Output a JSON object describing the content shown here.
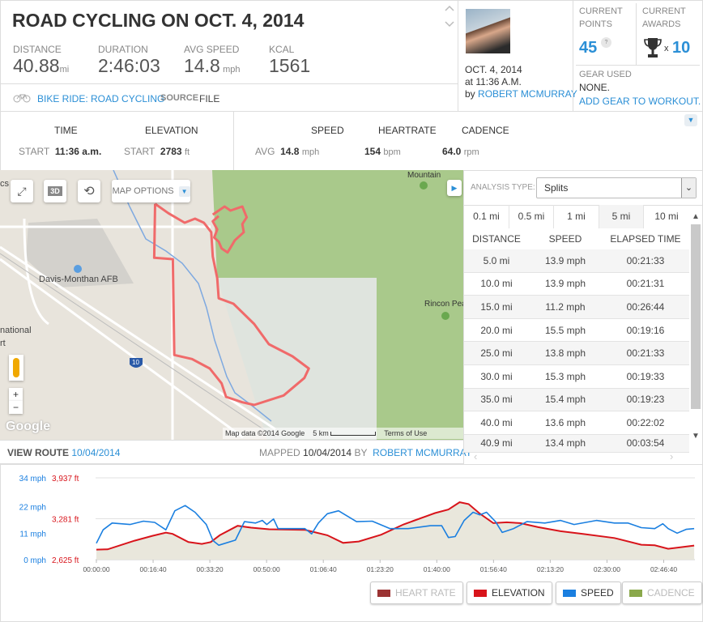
{
  "header": {
    "title": "ROAD CYCLING ON OCT. 4, 2014",
    "stats": [
      {
        "label": "DISTANCE",
        "value": "40.88",
        "unit": "mi"
      },
      {
        "label": "DURATION",
        "value": "2:46:03",
        "unit": ""
      },
      {
        "label": "AVG SPEED",
        "value": "14.8",
        "unit": "mph"
      },
      {
        "label": "KCAL",
        "value": "1561",
        "unit": ""
      }
    ],
    "activity_link": "BIKE RIDE: ROAD CYCLING",
    "source_label": "SOURCE",
    "source_value": "FILE"
  },
  "author": {
    "date": "OCT. 4, 2014",
    "time": "at 11:36 A.M.",
    "by": "by",
    "name": "ROBERT MCMURRAY"
  },
  "points": {
    "label1": "CURRENT",
    "label2": "POINTS",
    "value": "45",
    "help": "?"
  },
  "awards": {
    "label1": "CURRENT",
    "label2": "AWARDS",
    "x": "x",
    "value": "10"
  },
  "gear": {
    "label": "GEAR USED",
    "value": "NONE.",
    "add_link": "ADD GEAR TO WORKOUT."
  },
  "summary": {
    "time_h": "TIME",
    "elev_h": "ELEVATION",
    "start": "START",
    "time_v": "11:36 a.m.",
    "elev_v": "2783",
    "elev_u": "ft",
    "speed_h": "SPEED",
    "hr_h": "HEARTRATE",
    "cad_h": "CADENCE",
    "avg": "AVG",
    "speed_v": "14.8",
    "speed_u": "mph",
    "hr_v": "154",
    "hr_u": "bpm",
    "cad_v": "64.0",
    "cad_u": "rpm"
  },
  "map": {
    "options": "MAP OPTIONS",
    "btn3d": "3D",
    "labels": {
      "afb": "Davis-Monthan AFB",
      "intl1": "national",
      "intl2": "rt",
      "mountain": "Mountain",
      "rincon": "Rincon Pea",
      "cs": "cs",
      "i10": "10",
      "google": "Google"
    },
    "attribution": "Map data ©2014 Google",
    "scale": "5 km",
    "terms": "Terms of Use",
    "zoom_in": "+",
    "zoom_out": "−"
  },
  "route": {
    "view_label": "VIEW ROUTE",
    "view_date": "10/04/2014",
    "mapped_label": "MAPPED",
    "mapped_date": "10/04/2014",
    "by": "BY",
    "mapped_by": "ROBERT MCMURRAY"
  },
  "analysis": {
    "label": "ANALYSIS TYPE:",
    "selected": "Splits",
    "tabs": [
      "0.1 mi",
      "0.5 mi",
      "1 mi",
      "5 mi",
      "10 mi"
    ],
    "active_tab": "5 mi",
    "columns": [
      "DISTANCE",
      "SPEED",
      "ELAPSED TIME"
    ],
    "rows": [
      [
        "5.0 mi",
        "13.9 mph",
        "00:21:33"
      ],
      [
        "10.0 mi",
        "13.9 mph",
        "00:21:31"
      ],
      [
        "15.0 mi",
        "11.2 mph",
        "00:26:44"
      ],
      [
        "20.0 mi",
        "15.5 mph",
        "00:19:16"
      ],
      [
        "25.0 mi",
        "13.8 mph",
        "00:21:33"
      ],
      [
        "30.0 mi",
        "15.3 mph",
        "00:19:33"
      ],
      [
        "35.0 mi",
        "15.4 mph",
        "00:19:23"
      ],
      [
        "40.0 mi",
        "13.6 mph",
        "00:22:02"
      ],
      [
        "40.9 mi",
        "13.4 mph",
        "00:03:54"
      ]
    ]
  },
  "chart_data": {
    "type": "line",
    "x_ticks": [
      "00:00:00",
      "00:16:40",
      "00:33:20",
      "00:50:00",
      "01:06:40",
      "01:23:20",
      "01:40:00",
      "01:56:40",
      "02:13:20",
      "02:30:00",
      "02:46:40"
    ],
    "y_left_ticks": [
      "0 mph",
      "11 mph",
      "22 mph",
      "34 mph"
    ],
    "y_left_range": [
      0,
      34
    ],
    "y_right_ticks": [
      "2,625 ft",
      "3,281 ft",
      "3,937 ft"
    ],
    "y_right_range": [
      2625,
      3937
    ],
    "colors": {
      "speed": "#1a7fe0",
      "elevation": "#d8141b",
      "elevation_fill": "#e9e7dc",
      "heart_rate": "#9b3333",
      "cadence": "#8aa84b"
    },
    "series": [
      {
        "name": "SPEED",
        "unit": "mph",
        "points": [
          [
            "00:00:00",
            6.8
          ],
          [
            "00:01:59",
            12.4
          ],
          [
            "00:04:37",
            15.2
          ],
          [
            "00:09:53",
            14.6
          ],
          [
            "00:13:50",
            16.0
          ],
          [
            "00:17:08",
            15.5
          ],
          [
            "00:20:25",
            12.4
          ],
          [
            "00:23:03",
            20.3
          ],
          [
            "00:26:05",
            22.5
          ],
          [
            "00:28:59",
            19.7
          ],
          [
            "00:32:17",
            14.6
          ],
          [
            "00:34:15",
            7.9
          ],
          [
            "00:35:58",
            6.0
          ],
          [
            "00:40:51",
            8.1
          ],
          [
            "00:43:29",
            15.8
          ],
          [
            "00:46:46",
            15.2
          ],
          [
            "00:48:45",
            16.3
          ],
          [
            "00:50:04",
            14.6
          ],
          [
            "00:52:03",
            16.9
          ],
          [
            "00:53:22",
            12.9
          ],
          [
            "01:01:16",
            12.9
          ],
          [
            "01:03:14",
            10.7
          ],
          [
            "01:05:13",
            15.2
          ],
          [
            "01:07:51",
            19.1
          ],
          [
            "01:11:09",
            20.3
          ],
          [
            "01:16:25",
            15.8
          ],
          [
            "01:21:02",
            16.0
          ],
          [
            "01:26:18",
            12.9
          ],
          [
            "01:31:34",
            12.9
          ],
          [
            "01:38:09",
            14.1
          ],
          [
            "01:41:27",
            14.1
          ],
          [
            "01:43:25",
            9.2
          ],
          [
            "01:45:24",
            9.6
          ],
          [
            "01:48:02",
            16.3
          ],
          [
            "01:50:40",
            19.7
          ],
          [
            "01:52:39",
            18.6
          ],
          [
            "01:54:37",
            19.7
          ],
          [
            "01:57:15",
            15.8
          ],
          [
            "01:59:14",
            11.3
          ],
          [
            "02:02:32",
            12.9
          ],
          [
            "02:06:29",
            15.8
          ],
          [
            "02:11:45",
            15.2
          ],
          [
            "02:16:22",
            16.3
          ],
          [
            "02:20:19",
            14.6
          ],
          [
            "02:26:54",
            16.3
          ],
          [
            "02:32:10",
            15.2
          ],
          [
            "02:36:07",
            15.2
          ],
          [
            "02:40:04",
            13.3
          ],
          [
            "02:44:01",
            12.9
          ],
          [
            "02:46:24",
            14.9
          ],
          [
            "02:47:59",
            12.9
          ],
          [
            "02:50:37",
            11.0
          ],
          [
            "02:53:15",
            12.6
          ],
          [
            "02:55:37",
            12.9
          ]
        ]
      },
      {
        "name": "ELEVATION",
        "unit": "ft",
        "points": [
          [
            "00:00:00",
            2786
          ],
          [
            "00:03:18",
            2790
          ],
          [
            "00:11:12",
            2929
          ],
          [
            "00:16:28",
            3007
          ],
          [
            "00:20:25",
            3059
          ],
          [
            "00:22:24",
            3038
          ],
          [
            "00:27:01",
            2907
          ],
          [
            "00:30:58",
            2877
          ],
          [
            "00:33:36",
            2907
          ],
          [
            "00:36:14",
            3016
          ],
          [
            "00:41:30",
            3168
          ],
          [
            "00:45:27",
            3138
          ],
          [
            "00:50:43",
            3112
          ],
          [
            "01:01:16",
            3103
          ],
          [
            "01:07:51",
            3016
          ],
          [
            "01:12:28",
            2894
          ],
          [
            "01:17:04",
            2916
          ],
          [
            "01:23:40",
            3025
          ],
          [
            "01:30:15",
            3190
          ],
          [
            "01:39:28",
            3372
          ],
          [
            "01:43:25",
            3429
          ],
          [
            "01:46:43",
            3546
          ],
          [
            "01:49:21",
            3516
          ],
          [
            "01:52:39",
            3363
          ],
          [
            "01:56:36",
            3211
          ],
          [
            "02:00:33",
            3224
          ],
          [
            "02:04:30",
            3211
          ],
          [
            "02:09:46",
            3146
          ],
          [
            "02:16:22",
            3081
          ],
          [
            "02:22:57",
            3038
          ],
          [
            "02:32:10",
            2972
          ],
          [
            "02:40:04",
            2864
          ],
          [
            "02:44:01",
            2855
          ],
          [
            "02:47:59",
            2799
          ],
          [
            "02:55:37",
            2851
          ]
        ]
      }
    ],
    "legend": [
      {
        "label": "HEART RATE",
        "active": false
      },
      {
        "label": "ELEVATION",
        "active": true
      },
      {
        "label": "SPEED",
        "active": true
      },
      {
        "label": "CADENCE",
        "active": false
      }
    ]
  }
}
